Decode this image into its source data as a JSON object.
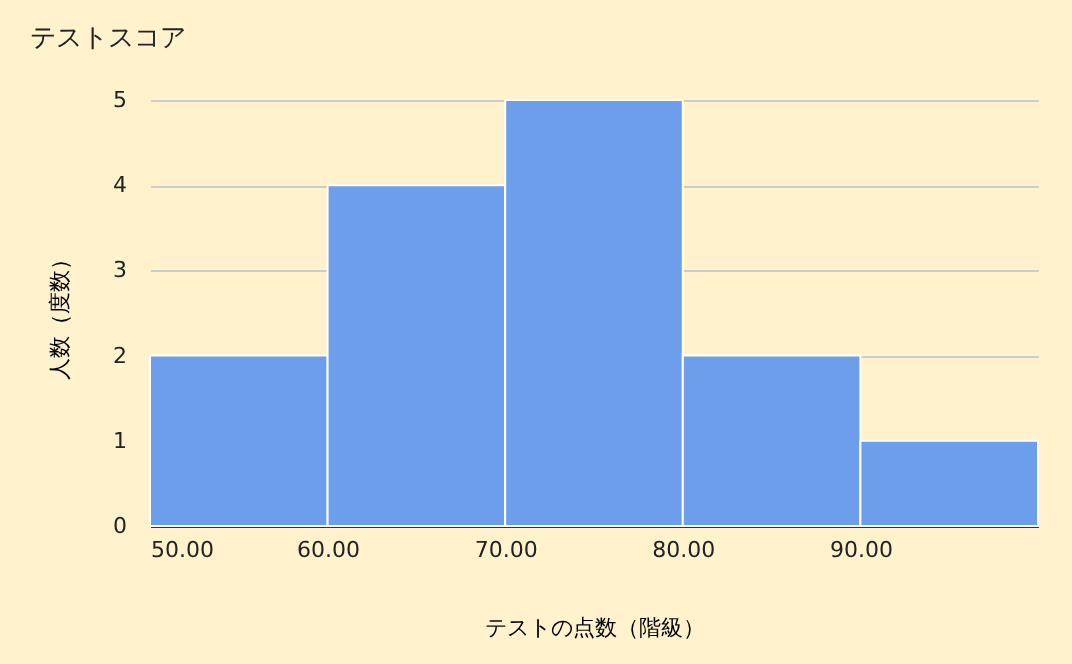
{
  "chart_data": {
    "type": "histogram",
    "title": "テストスコア",
    "xlabel": "テストの点数（階級）",
    "ylabel": "人数（度数）",
    "bins": [
      50,
      60,
      70,
      80,
      90,
      100
    ],
    "values": [
      2,
      4,
      5,
      2,
      1
    ],
    "color": "#6d9eeb",
    "xlim": [
      50,
      100
    ],
    "xticks": [
      {
        "value": 50,
        "label": "50.00"
      },
      {
        "value": 60,
        "label": "60.00"
      },
      {
        "value": 70,
        "label": "70.00"
      },
      {
        "value": 80,
        "label": "80.00"
      },
      {
        "value": 90,
        "label": "90.00"
      }
    ],
    "ylim": [
      0,
      5
    ],
    "yticks": [
      0,
      1,
      2,
      3,
      4,
      5
    ],
    "grid": "y"
  }
}
